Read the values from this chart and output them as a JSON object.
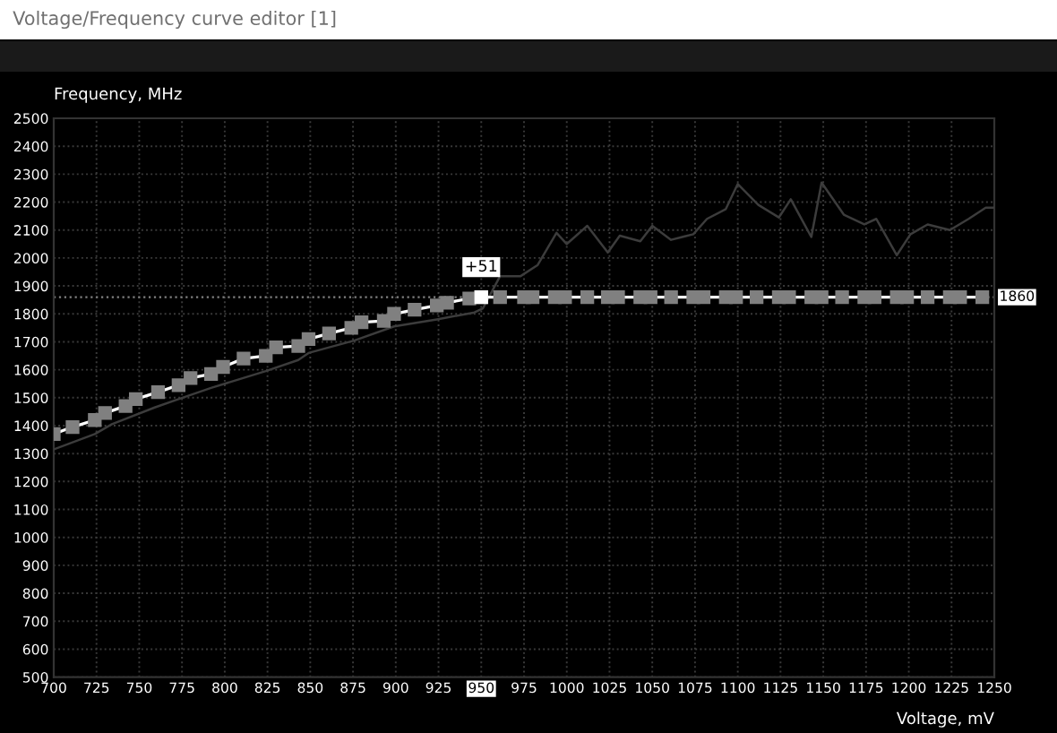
{
  "chart_data": {
    "type": "line",
    "title": "Voltage/Frequency curve editor [1]",
    "xlabel": "Voltage, mV",
    "ylabel": "Frequency, MHz",
    "xlim": [
      700,
      1250
    ],
    "xticks": [
      700,
      725,
      750,
      775,
      800,
      825,
      850,
      875,
      900,
      925,
      950,
      975,
      1000,
      1025,
      1050,
      1075,
      1100,
      1125,
      1150,
      1175,
      1200,
      1225,
      1250
    ],
    "ylim": [
      500,
      2500
    ],
    "yticks": [
      500,
      600,
      700,
      800,
      900,
      1000,
      1100,
      1200,
      1300,
      1400,
      1500,
      1600,
      1700,
      1800,
      1900,
      2000,
      2100,
      2200,
      2300,
      2400,
      2500
    ],
    "grid": true,
    "line_style": "solid",
    "ref_lines": [
      {
        "axis": "y",
        "value": 1860,
        "label": "1860",
        "color": "#808080",
        "line_style": "dotted"
      }
    ],
    "annotations": [
      {
        "text": "+51",
        "x": 950,
        "y": 1860
      }
    ],
    "series": [
      {
        "color": "#3c3c3c",
        "marker": "none",
        "x": [
          700,
          724,
          734,
          759,
          773,
          792,
          824,
          843,
          849,
          876,
          899,
          924,
          946,
          951,
          961,
          973,
          983,
          994,
          1000,
          1012,
          1024,
          1031,
          1043,
          1050,
          1061,
          1074,
          1082,
          1093,
          1100,
          1112,
          1124,
          1131,
          1143,
          1149,
          1162,
          1174,
          1181,
          1193,
          1201,
          1211,
          1224,
          1235,
          1245,
          1250
        ],
        "values": [
          1315,
          1370,
          1405,
          1465,
          1495,
          1535,
          1595,
          1635,
          1660,
          1705,
          1755,
          1780,
          1805,
          1820,
          1935,
          1935,
          1975,
          2090,
          2050,
          2115,
          2020,
          2080,
          2060,
          2115,
          2065,
          2085,
          2140,
          2175,
          2265,
          2190,
          2145,
          2210,
          2075,
          2270,
          2155,
          2120,
          2140,
          2010,
          2085,
          2120,
          2100,
          2140,
          2180,
          2180
        ]
      },
      {
        "color": "#ffffff",
        "marker": "square",
        "x": [
          700,
          711,
          724,
          730,
          742,
          748,
          761,
          773,
          780,
          792,
          799,
          811,
          824,
          830,
          843,
          849,
          861,
          874,
          880,
          893,
          899,
          911,
          924,
          930,
          943,
          950,
          961,
          975,
          980,
          993,
          999,
          1012,
          1024,
          1030,
          1043,
          1049,
          1061,
          1074,
          1080,
          1093,
          1099,
          1111,
          1124,
          1130,
          1143,
          1149,
          1161,
          1174,
          1180,
          1193,
          1199,
          1211,
          1224,
          1230,
          1243
        ],
        "values": [
          1370,
          1395,
          1420,
          1445,
          1470,
          1495,
          1520,
          1545,
          1570,
          1585,
          1610,
          1640,
          1650,
          1680,
          1685,
          1710,
          1730,
          1750,
          1770,
          1775,
          1800,
          1815,
          1830,
          1840,
          1855,
          1860,
          1860,
          1860,
          1860,
          1860,
          1860,
          1860,
          1860,
          1860,
          1860,
          1860,
          1860,
          1860,
          1860,
          1860,
          1860,
          1860,
          1860,
          1860,
          1860,
          1860,
          1860,
          1860,
          1860,
          1860,
          1860,
          1860,
          1860,
          1860,
          1860
        ]
      }
    ]
  }
}
